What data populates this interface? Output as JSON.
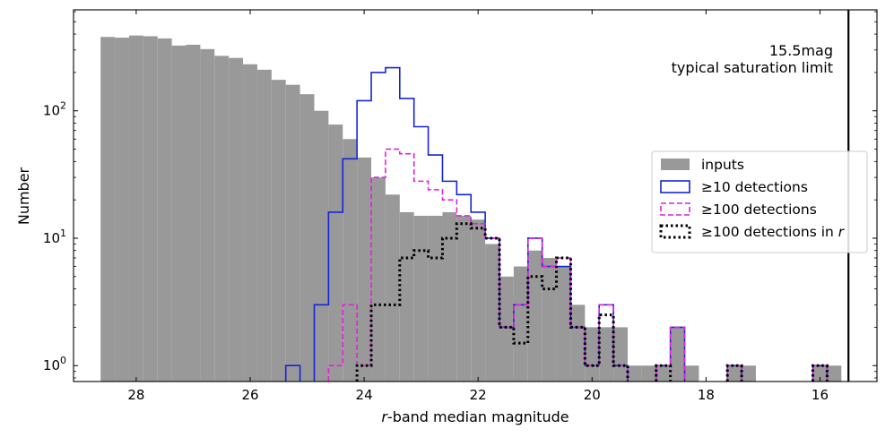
{
  "chart_data": {
    "type": "bar",
    "xlabel_italic": "r",
    "xlabel_rest": "-band median magnitude",
    "ylabel": "Number",
    "x_axis": {
      "range": [
        29.1,
        15.0
      ],
      "reversed": true,
      "ticks": [
        28,
        26,
        24,
        22,
        20,
        18,
        16
      ]
    },
    "y_axis": {
      "scale": "log",
      "range": [
        0.75,
        620
      ],
      "ticks": [
        {
          "value": 1,
          "base": "10",
          "exp": "0"
        },
        {
          "value": 10,
          "base": "10",
          "exp": "1"
        },
        {
          "value": 100,
          "base": "10",
          "exp": "2"
        }
      ]
    },
    "bin_width": 0.25,
    "series": [
      {
        "name": "inputs",
        "style": "filled",
        "color": "#999999",
        "bins": [
          [
            28.5,
            380
          ],
          [
            28.25,
            375
          ],
          [
            28.0,
            390
          ],
          [
            27.75,
            385
          ],
          [
            27.5,
            370
          ],
          [
            27.25,
            325
          ],
          [
            27.0,
            330
          ],
          [
            26.75,
            305
          ],
          [
            26.5,
            270
          ],
          [
            26.25,
            260
          ],
          [
            26.0,
            232
          ],
          [
            25.75,
            210
          ],
          [
            25.5,
            175
          ],
          [
            25.25,
            160
          ],
          [
            25.0,
            135
          ],
          [
            24.75,
            100
          ],
          [
            24.5,
            78
          ],
          [
            24.25,
            60
          ],
          [
            24.0,
            43
          ],
          [
            23.75,
            30
          ],
          [
            23.5,
            22
          ],
          [
            23.25,
            16
          ],
          [
            23.0,
            15
          ],
          [
            22.75,
            15
          ],
          [
            22.5,
            16
          ],
          [
            22.25,
            15
          ],
          [
            22.0,
            14
          ],
          [
            21.75,
            9
          ],
          [
            21.5,
            5
          ],
          [
            21.25,
            6
          ],
          [
            21.0,
            8
          ],
          [
            20.75,
            7
          ],
          [
            20.5,
            6
          ],
          [
            20.25,
            3
          ],
          [
            20.0,
            2
          ],
          [
            19.75,
            2
          ],
          [
            19.5,
            2
          ],
          [
            19.25,
            1
          ],
          [
            19.0,
            1
          ],
          [
            18.75,
            1
          ],
          [
            18.5,
            2
          ],
          [
            18.25,
            1
          ],
          [
            17.5,
            1
          ],
          [
            17.25,
            1
          ],
          [
            16.0,
            1
          ],
          [
            15.75,
            1
          ]
        ]
      },
      {
        "name": "≥10 detections",
        "style": "step-solid",
        "color": "#1525d6",
        "bins": [
          [
            25.25,
            1
          ],
          [
            24.75,
            3
          ],
          [
            24.5,
            16
          ],
          [
            24.25,
            42
          ],
          [
            24.0,
            120
          ],
          [
            23.75,
            200
          ],
          [
            23.5,
            218
          ],
          [
            23.25,
            125
          ],
          [
            23.0,
            75
          ],
          [
            22.75,
            45
          ],
          [
            22.5,
            28
          ],
          [
            22.25,
            22
          ],
          [
            22.0,
            16
          ],
          [
            21.75,
            10
          ],
          [
            21.5,
            2
          ],
          [
            21.25,
            3
          ],
          [
            21.0,
            10
          ],
          [
            20.75,
            6
          ],
          [
            20.5,
            6
          ],
          [
            20.25,
            2
          ],
          [
            20.0,
            1
          ],
          [
            19.75,
            3
          ],
          [
            19.5,
            1
          ],
          [
            18.75,
            1
          ],
          [
            18.5,
            2
          ],
          [
            17.5,
            1
          ],
          [
            16.0,
            1
          ]
        ]
      },
      {
        "name": "≥100 detections",
        "style": "step-dashed",
        "color": "#e020e0",
        "bins": [
          [
            24.5,
            1
          ],
          [
            24.25,
            3
          ],
          [
            24.0,
            1
          ],
          [
            23.75,
            30
          ],
          [
            23.5,
            50
          ],
          [
            23.25,
            46
          ],
          [
            23.0,
            28
          ],
          [
            22.75,
            24
          ],
          [
            22.5,
            20
          ],
          [
            22.25,
            15
          ],
          [
            22.0,
            13
          ],
          [
            21.75,
            10
          ],
          [
            21.5,
            2
          ],
          [
            21.25,
            3
          ],
          [
            21.0,
            10
          ],
          [
            20.75,
            6
          ],
          [
            20.5,
            7
          ],
          [
            20.25,
            2
          ],
          [
            20.0,
            1
          ],
          [
            19.75,
            3
          ],
          [
            19.5,
            1
          ],
          [
            18.75,
            1
          ],
          [
            18.5,
            2
          ],
          [
            17.5,
            1
          ],
          [
            16.0,
            1
          ]
        ]
      },
      {
        "name": "≥100 detections in ",
        "name_italic": "r",
        "style": "step-dotted",
        "color": "#000000",
        "bins": [
          [
            24.0,
            1
          ],
          [
            23.75,
            3
          ],
          [
            23.5,
            3
          ],
          [
            23.25,
            7
          ],
          [
            23.0,
            8
          ],
          [
            22.75,
            7
          ],
          [
            22.5,
            10
          ],
          [
            22.25,
            13
          ],
          [
            22.0,
            12
          ],
          [
            21.75,
            10
          ],
          [
            21.5,
            2
          ],
          [
            21.25,
            1.5
          ],
          [
            21.0,
            5
          ],
          [
            20.75,
            4
          ],
          [
            20.5,
            7
          ],
          [
            20.25,
            2
          ],
          [
            20.0,
            1
          ],
          [
            19.75,
            2.5
          ],
          [
            19.5,
            1
          ],
          [
            18.75,
            1
          ],
          [
            17.5,
            1
          ],
          [
            16.0,
            1
          ]
        ]
      }
    ],
    "vline": {
      "x": 15.5,
      "color": "#000000"
    },
    "annotation": {
      "line1": "15.5mag",
      "line2": "typical saturation limit"
    },
    "legend_position": "center-right"
  }
}
